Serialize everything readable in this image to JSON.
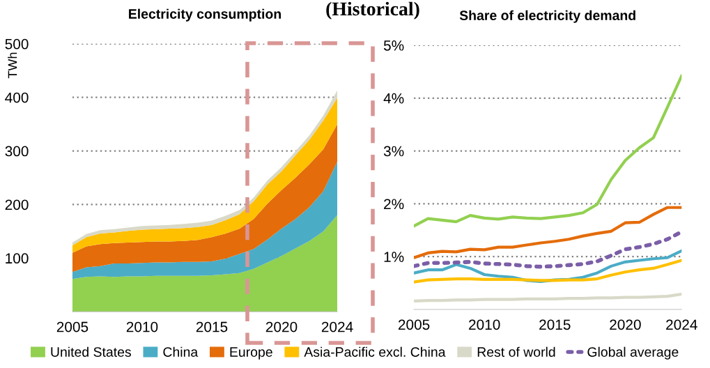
{
  "chart_data": [
    {
      "type": "area",
      "stacked": true,
      "title": "Electricity consumption",
      "ylabel": "TWh",
      "annotations": [
        "(Historical)"
      ],
      "x": [
        2005,
        2006,
        2007,
        2008,
        2009,
        2010,
        2011,
        2012,
        2013,
        2014,
        2015,
        2016,
        2017,
        2018,
        2019,
        2020,
        2021,
        2022,
        2023,
        2024
      ],
      "xlim": [
        2005,
        2024
      ],
      "xticks": [
        2005,
        2010,
        2015,
        2020,
        2024
      ],
      "ylim": [
        0,
        500
      ],
      "yticks": [
        100,
        200,
        300,
        400,
        500
      ],
      "grid": "y",
      "legend": "bottom",
      "series": [
        {
          "name": "United States",
          "color": "#92d050",
          "values": [
            61,
            65,
            66,
            65,
            66,
            66,
            67,
            67,
            67,
            67,
            68,
            70,
            72,
            80,
            92,
            104,
            118,
            132,
            150,
            180
          ]
        },
        {
          "name": "China",
          "color": "#4bacc6",
          "values": [
            13,
            18,
            19,
            25,
            24,
            25,
            25,
            25,
            26,
            26,
            26,
            29,
            36,
            37,
            43,
            51,
            55,
            63,
            75,
            100
          ]
        },
        {
          "name": "Europe",
          "color": "#e46c0a",
          "values": [
            36,
            39,
            41,
            38,
            39,
            39,
            39,
            39,
            39,
            41,
            45,
            47,
            47,
            56,
            67,
            72,
            77,
            80,
            78,
            70
          ]
        },
        {
          "name": "Asia-Pacific excl. China",
          "color": "#ffc000",
          "values": [
            14,
            17,
            20,
            20,
            22,
            23,
            23,
            24,
            24,
            24,
            23,
            25,
            27,
            33,
            36,
            35,
            42,
            46,
            54,
            49
          ]
        },
        {
          "name": "Rest of world",
          "color": "#d9d9c9",
          "values": [
            5,
            6,
            6,
            6,
            6,
            7,
            7,
            7,
            8,
            8,
            8,
            8,
            8,
            7,
            7,
            8,
            7,
            8,
            9,
            14
          ]
        }
      ]
    },
    {
      "type": "line",
      "title": "Share of electricity demand",
      "x": [
        2005,
        2006,
        2007,
        2008,
        2009,
        2010,
        2011,
        2012,
        2013,
        2014,
        2015,
        2016,
        2017,
        2018,
        2019,
        2020,
        2021,
        2022,
        2023,
        2024
      ],
      "xlim": [
        2005,
        2024
      ],
      "xticks": [
        2005,
        2010,
        2015,
        2020,
        2024
      ],
      "ylim": [
        0,
        5
      ],
      "yticks": [
        {
          "value": 1,
          "label": "1%"
        },
        {
          "value": 2,
          "label": "2%"
        },
        {
          "value": 3,
          "label": "3%"
        },
        {
          "value": 4,
          "label": "4%"
        },
        {
          "value": 5,
          "label": "5%"
        }
      ],
      "grid": "y",
      "legend": "bottom",
      "line_style": "solid",
      "marker": "none",
      "series": [
        {
          "name": "United States",
          "color": "#92d050",
          "values": [
            1.58,
            1.72,
            1.69,
            1.66,
            1.78,
            1.73,
            1.71,
            1.75,
            1.73,
            1.72,
            1.75,
            1.78,
            1.83,
            1.99,
            2.46,
            2.82,
            3.06,
            3.25,
            3.83,
            4.42
          ]
        },
        {
          "name": "China",
          "color": "#4bacc6",
          "values": [
            0.69,
            0.75,
            0.75,
            0.85,
            0.78,
            0.66,
            0.63,
            0.61,
            0.55,
            0.53,
            0.56,
            0.57,
            0.61,
            0.69,
            0.82,
            0.9,
            0.93,
            0.96,
            0.98,
            1.11
          ]
        },
        {
          "name": "Europe",
          "color": "#e46c0a",
          "values": [
            0.98,
            1.07,
            1.1,
            1.09,
            1.14,
            1.13,
            1.18,
            1.18,
            1.22,
            1.26,
            1.29,
            1.33,
            1.39,
            1.44,
            1.48,
            1.64,
            1.65,
            1.8,
            1.93,
            1.93
          ]
        },
        {
          "name": "Asia-Pacific excl. China",
          "color": "#ffc000",
          "values": [
            0.52,
            0.56,
            0.57,
            0.58,
            0.58,
            0.57,
            0.57,
            0.57,
            0.56,
            0.55,
            0.55,
            0.56,
            0.56,
            0.58,
            0.65,
            0.71,
            0.75,
            0.78,
            0.85,
            0.93
          ]
        },
        {
          "name": "Rest of world",
          "color": "#d9d9c9",
          "values": [
            0.16,
            0.17,
            0.17,
            0.18,
            0.18,
            0.19,
            0.19,
            0.19,
            0.2,
            0.2,
            0.2,
            0.21,
            0.21,
            0.22,
            0.22,
            0.23,
            0.23,
            0.24,
            0.25,
            0.29
          ]
        },
        {
          "name": "Global average",
          "color": "#7b5ea7",
          "line_style": "dotted",
          "values": [
            0.82,
            0.88,
            0.88,
            0.89,
            0.9,
            0.87,
            0.86,
            0.85,
            0.82,
            0.81,
            0.82,
            0.84,
            0.86,
            0.91,
            1.02,
            1.14,
            1.18,
            1.24,
            1.33,
            1.47
          ]
        }
      ]
    }
  ]
}
